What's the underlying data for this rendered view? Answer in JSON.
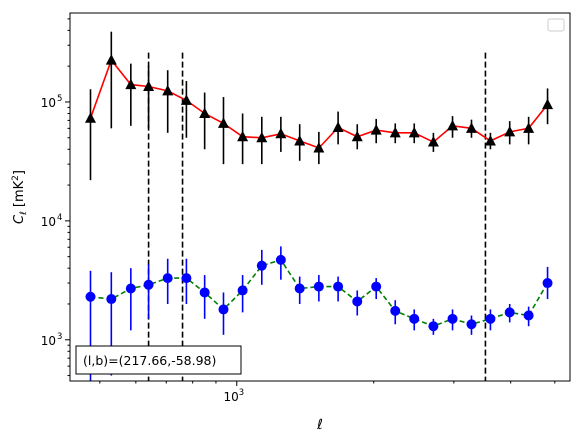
{
  "chart_data": {
    "type": "scatter",
    "xscale": "log",
    "yscale": "log",
    "xlim": [
      430,
      5400
    ],
    "ylim": [
      450,
      560000
    ],
    "xlabel": "ℓ",
    "ylabel": "C_ℓ  [mK²]",
    "x_tick_labels": [
      {
        "value": 1000,
        "label": "10^3"
      }
    ],
    "y_tick_labels": [
      {
        "value": 1000,
        "label": "10^3"
      },
      {
        "value": 10000,
        "label": "10^4"
      },
      {
        "value": 100000,
        "label": "10^5"
      }
    ],
    "legend": {
      "placement": "top-right",
      "entries": []
    },
    "annotation": "(l,b)=(217.66,-58.98)",
    "vlines": {
      "x": [
        640,
        760,
        3520
      ],
      "y_range": [
        450,
        260000
      ],
      "style": "dashed",
      "color": "#000000"
    },
    "x": [
      477,
      530,
      585,
      640,
      705,
      775,
      850,
      935,
      1030,
      1135,
      1250,
      1375,
      1515,
      1670,
      1840,
      2025,
      2230,
      2455,
      2705,
      2980,
      3280,
      3610,
      3980,
      4380,
      4820
    ],
    "series": [
      {
        "color": "#ff0000",
        "marker": "triangle",
        "marker_color": "#000000",
        "errorbar_color": "#000000",
        "line_style": "solid",
        "y": [
          73000,
          225000,
          140000,
          135000,
          124000,
          103000,
          80000,
          66000,
          51000,
          50000,
          54000,
          47000,
          41000,
          61000,
          51000,
          58000,
          55000,
          55000,
          46000,
          63000,
          60000,
          47000,
          56000,
          60000,
          95000
        ],
        "y_err_low": [
          51000,
          165000,
          77000,
          75000,
          69000,
          53000,
          40000,
          36000,
          21000,
          20000,
          16000,
          15000,
          11000,
          17000,
          11000,
          13000,
          10000,
          10000,
          8000,
          13000,
          10000,
          7000,
          12000,
          16000,
          30000
        ],
        "y_err_high": [
          55000,
          165000,
          70000,
          65000,
          61000,
          47000,
          40000,
          44000,
          29000,
          25000,
          21000,
          18000,
          15000,
          22000,
          14000,
          14000,
          11000,
          11000,
          9000,
          13000,
          11000,
          8000,
          13000,
          15000,
          35000
        ]
      },
      {
        "color": "#008000",
        "marker": "circle",
        "marker_color": "#0000ff",
        "errorbar_color": "#0000ff",
        "line_style": "dashed",
        "y": [
          2300,
          2200,
          2700,
          2900,
          3300,
          3300,
          2500,
          1800,
          2600,
          4200,
          4700,
          2700,
          2800,
          2800,
          2100,
          2800,
          1750,
          1500,
          1300,
          1500,
          1350,
          1500,
          1700,
          1600,
          3000
        ],
        "y_err_low": [
          1850,
          1700,
          1500,
          1400,
          1300,
          1300,
          1000,
          700,
          900,
          1300,
          1500,
          700,
          700,
          700,
          500,
          600,
          400,
          300,
          200,
          300,
          250,
          300,
          300,
          300,
          800
        ],
        "y_err_high": [
          1500,
          1500,
          1300,
          1400,
          1500,
          1500,
          1000,
          700,
          900,
          1500,
          1400,
          700,
          700,
          600,
          500,
          500,
          400,
          300,
          200,
          300,
          250,
          300,
          300,
          300,
          1100
        ]
      }
    ]
  }
}
